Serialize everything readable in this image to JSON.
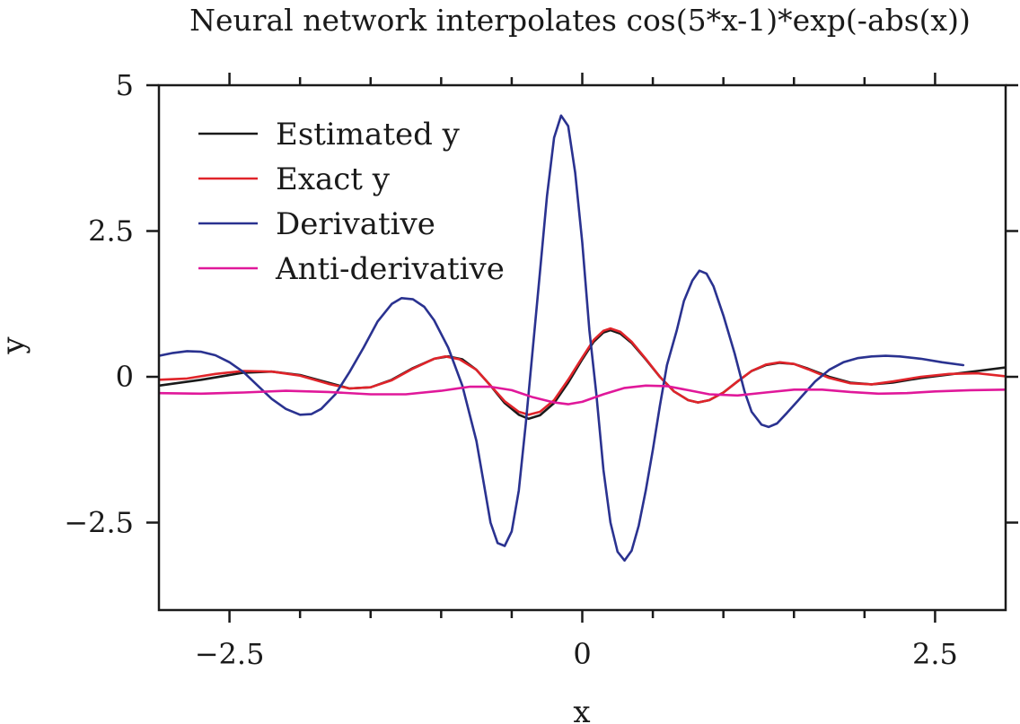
{
  "chart_data": {
    "type": "line",
    "title": "Neural network interpolates cos(5*x-1)*exp(-abs(x))",
    "xlabel": "x",
    "ylabel": "y",
    "xlim": [
      -3,
      3
    ],
    "ylim": [
      -4,
      5
    ],
    "xticks": [
      {
        "value": -2.5,
        "label": "−2.5"
      },
      {
        "value": 0,
        "label": "0"
      },
      {
        "value": 2.5,
        "label": "2.5"
      }
    ],
    "yticks": [
      {
        "value": 5,
        "label": "5"
      },
      {
        "value": 2.5,
        "label": "2.5"
      },
      {
        "value": 0,
        "label": "0"
      },
      {
        "value": -2.5,
        "label": "−2.5"
      }
    ],
    "x_minor_step": 0.5,
    "legend_position": "top-left",
    "grid": false,
    "series": [
      {
        "name": "Estimated y",
        "color": "#1a1a1a",
        "points": [
          [
            -3.0,
            -0.15
          ],
          [
            -2.7,
            -0.05
          ],
          [
            -2.4,
            0.07
          ],
          [
            -2.2,
            0.09
          ],
          [
            -2.0,
            0.03
          ],
          [
            -1.8,
            -0.1
          ],
          [
            -1.65,
            -0.2
          ],
          [
            -1.5,
            -0.18
          ],
          [
            -1.35,
            -0.05
          ],
          [
            -1.2,
            0.15
          ],
          [
            -1.05,
            0.31
          ],
          [
            -0.95,
            0.35
          ],
          [
            -0.85,
            0.3
          ],
          [
            -0.75,
            0.12
          ],
          [
            -0.65,
            -0.15
          ],
          [
            -0.55,
            -0.45
          ],
          [
            -0.45,
            -0.65
          ],
          [
            -0.38,
            -0.72
          ],
          [
            -0.3,
            -0.66
          ],
          [
            -0.2,
            -0.45
          ],
          [
            -0.1,
            -0.1
          ],
          [
            0.0,
            0.3
          ],
          [
            0.08,
            0.6
          ],
          [
            0.15,
            0.76
          ],
          [
            0.2,
            0.8
          ],
          [
            0.27,
            0.74
          ],
          [
            0.35,
            0.58
          ],
          [
            0.45,
            0.3
          ],
          [
            0.55,
            0.0
          ],
          [
            0.65,
            -0.25
          ],
          [
            0.75,
            -0.4
          ],
          [
            0.82,
            -0.44
          ],
          [
            0.9,
            -0.4
          ],
          [
            1.0,
            -0.27
          ],
          [
            1.1,
            -0.08
          ],
          [
            1.2,
            0.1
          ],
          [
            1.3,
            0.2
          ],
          [
            1.4,
            0.24
          ],
          [
            1.5,
            0.22
          ],
          [
            1.6,
            0.14
          ],
          [
            1.75,
            0.0
          ],
          [
            1.9,
            -0.1
          ],
          [
            2.05,
            -0.13
          ],
          [
            2.2,
            -0.1
          ],
          [
            2.4,
            -0.02
          ],
          [
            2.6,
            0.04
          ],
          [
            2.8,
            0.1
          ],
          [
            3.0,
            0.16
          ]
        ]
      },
      {
        "name": "Exact y",
        "color": "#e0242a",
        "points": [
          [
            -3.0,
            -0.05
          ],
          [
            -2.8,
            -0.03
          ],
          [
            -2.6,
            0.05
          ],
          [
            -2.4,
            0.1
          ],
          [
            -2.2,
            0.09
          ],
          [
            -2.0,
            0.02
          ],
          [
            -1.8,
            -0.12
          ],
          [
            -1.65,
            -0.2
          ],
          [
            -1.5,
            -0.18
          ],
          [
            -1.35,
            -0.06
          ],
          [
            -1.2,
            0.14
          ],
          [
            -1.05,
            0.31
          ],
          [
            -0.97,
            0.35
          ],
          [
            -0.87,
            0.3
          ],
          [
            -0.75,
            0.12
          ],
          [
            -0.65,
            -0.15
          ],
          [
            -0.55,
            -0.42
          ],
          [
            -0.45,
            -0.6
          ],
          [
            -0.38,
            -0.65
          ],
          [
            -0.3,
            -0.6
          ],
          [
            -0.2,
            -0.4
          ],
          [
            -0.1,
            -0.05
          ],
          [
            0.0,
            0.33
          ],
          [
            0.08,
            0.63
          ],
          [
            0.15,
            0.79
          ],
          [
            0.2,
            0.83
          ],
          [
            0.27,
            0.77
          ],
          [
            0.35,
            0.6
          ],
          [
            0.45,
            0.31
          ],
          [
            0.55,
            0.0
          ],
          [
            0.65,
            -0.25
          ],
          [
            0.75,
            -0.4
          ],
          [
            0.82,
            -0.44
          ],
          [
            0.9,
            -0.4
          ],
          [
            1.0,
            -0.27
          ],
          [
            1.1,
            -0.08
          ],
          [
            1.2,
            0.1
          ],
          [
            1.3,
            0.21
          ],
          [
            1.4,
            0.25
          ],
          [
            1.5,
            0.22
          ],
          [
            1.6,
            0.13
          ],
          [
            1.75,
            -0.02
          ],
          [
            1.9,
            -0.11
          ],
          [
            2.05,
            -0.13
          ],
          [
            2.2,
            -0.08
          ],
          [
            2.4,
            0.0
          ],
          [
            2.6,
            0.05
          ],
          [
            2.8,
            0.06
          ],
          [
            3.0,
            0.01
          ]
        ]
      },
      {
        "name": "Derivative",
        "color": "#2a3290",
        "points": [
          [
            -3.0,
            0.36
          ],
          [
            -2.9,
            0.41
          ],
          [
            -2.8,
            0.44
          ],
          [
            -2.7,
            0.43
          ],
          [
            -2.6,
            0.37
          ],
          [
            -2.5,
            0.25
          ],
          [
            -2.4,
            0.08
          ],
          [
            -2.3,
            -0.15
          ],
          [
            -2.2,
            -0.38
          ],
          [
            -2.1,
            -0.55
          ],
          [
            -2.0,
            -0.65
          ],
          [
            -1.92,
            -0.64
          ],
          [
            -1.85,
            -0.55
          ],
          [
            -1.75,
            -0.3
          ],
          [
            -1.65,
            0.08
          ],
          [
            -1.55,
            0.5
          ],
          [
            -1.45,
            0.95
          ],
          [
            -1.35,
            1.25
          ],
          [
            -1.28,
            1.35
          ],
          [
            -1.2,
            1.33
          ],
          [
            -1.12,
            1.2
          ],
          [
            -1.05,
            0.97
          ],
          [
            -0.95,
            0.5
          ],
          [
            -0.85,
            -0.15
          ],
          [
            -0.75,
            -1.1
          ],
          [
            -0.7,
            -1.8
          ],
          [
            -0.65,
            -2.5
          ],
          [
            -0.6,
            -2.85
          ],
          [
            -0.55,
            -2.9
          ],
          [
            -0.5,
            -2.65
          ],
          [
            -0.45,
            -1.95
          ],
          [
            -0.4,
            -0.8
          ],
          [
            -0.35,
            0.5
          ],
          [
            -0.3,
            1.8
          ],
          [
            -0.25,
            3.1
          ],
          [
            -0.2,
            4.1
          ],
          [
            -0.15,
            4.48
          ],
          [
            -0.1,
            4.3
          ],
          [
            -0.05,
            3.5
          ],
          [
            0.0,
            2.3
          ],
          [
            0.05,
            0.8
          ],
          [
            0.1,
            -0.3
          ],
          [
            0.15,
            -1.6
          ],
          [
            0.2,
            -2.5
          ],
          [
            0.25,
            -3.0
          ],
          [
            0.3,
            -3.15
          ],
          [
            0.35,
            -2.98
          ],
          [
            0.4,
            -2.55
          ],
          [
            0.45,
            -1.95
          ],
          [
            0.5,
            -1.25
          ],
          [
            0.55,
            -0.5
          ],
          [
            0.6,
            0.2
          ],
          [
            0.67,
            0.8
          ],
          [
            0.72,
            1.3
          ],
          [
            0.78,
            1.65
          ],
          [
            0.83,
            1.82
          ],
          [
            0.88,
            1.77
          ],
          [
            0.93,
            1.55
          ],
          [
            1.0,
            1.05
          ],
          [
            1.08,
            0.4
          ],
          [
            1.15,
            -0.25
          ],
          [
            1.2,
            -0.6
          ],
          [
            1.27,
            -0.82
          ],
          [
            1.32,
            -0.86
          ],
          [
            1.38,
            -0.8
          ],
          [
            1.45,
            -0.62
          ],
          [
            1.55,
            -0.35
          ],
          [
            1.65,
            -0.08
          ],
          [
            1.75,
            0.12
          ],
          [
            1.85,
            0.25
          ],
          [
            1.95,
            0.32
          ],
          [
            2.05,
            0.35
          ],
          [
            2.15,
            0.36
          ],
          [
            2.25,
            0.35
          ],
          [
            2.4,
            0.31
          ],
          [
            2.55,
            0.25
          ],
          [
            2.7,
            0.2
          ]
        ]
      },
      {
        "name": "Anti-derivative",
        "color": "#e0189a",
        "points": [
          [
            -3.0,
            -0.28
          ],
          [
            -2.7,
            -0.29
          ],
          [
            -2.4,
            -0.27
          ],
          [
            -2.1,
            -0.24
          ],
          [
            -1.8,
            -0.26
          ],
          [
            -1.5,
            -0.3
          ],
          [
            -1.25,
            -0.3
          ],
          [
            -1.0,
            -0.24
          ],
          [
            -0.8,
            -0.17
          ],
          [
            -0.65,
            -0.17
          ],
          [
            -0.5,
            -0.23
          ],
          [
            -0.35,
            -0.35
          ],
          [
            -0.2,
            -0.44
          ],
          [
            -0.1,
            -0.47
          ],
          [
            0.0,
            -0.43
          ],
          [
            0.15,
            -0.3
          ],
          [
            0.3,
            -0.19
          ],
          [
            0.45,
            -0.15
          ],
          [
            0.6,
            -0.16
          ],
          [
            0.75,
            -0.23
          ],
          [
            0.9,
            -0.3
          ],
          [
            1.1,
            -0.32
          ],
          [
            1.3,
            -0.27
          ],
          [
            1.5,
            -0.22
          ],
          [
            1.7,
            -0.22
          ],
          [
            1.9,
            -0.26
          ],
          [
            2.1,
            -0.29
          ],
          [
            2.3,
            -0.28
          ],
          [
            2.5,
            -0.25
          ],
          [
            2.75,
            -0.23
          ],
          [
            3.0,
            -0.22
          ]
        ]
      }
    ]
  }
}
